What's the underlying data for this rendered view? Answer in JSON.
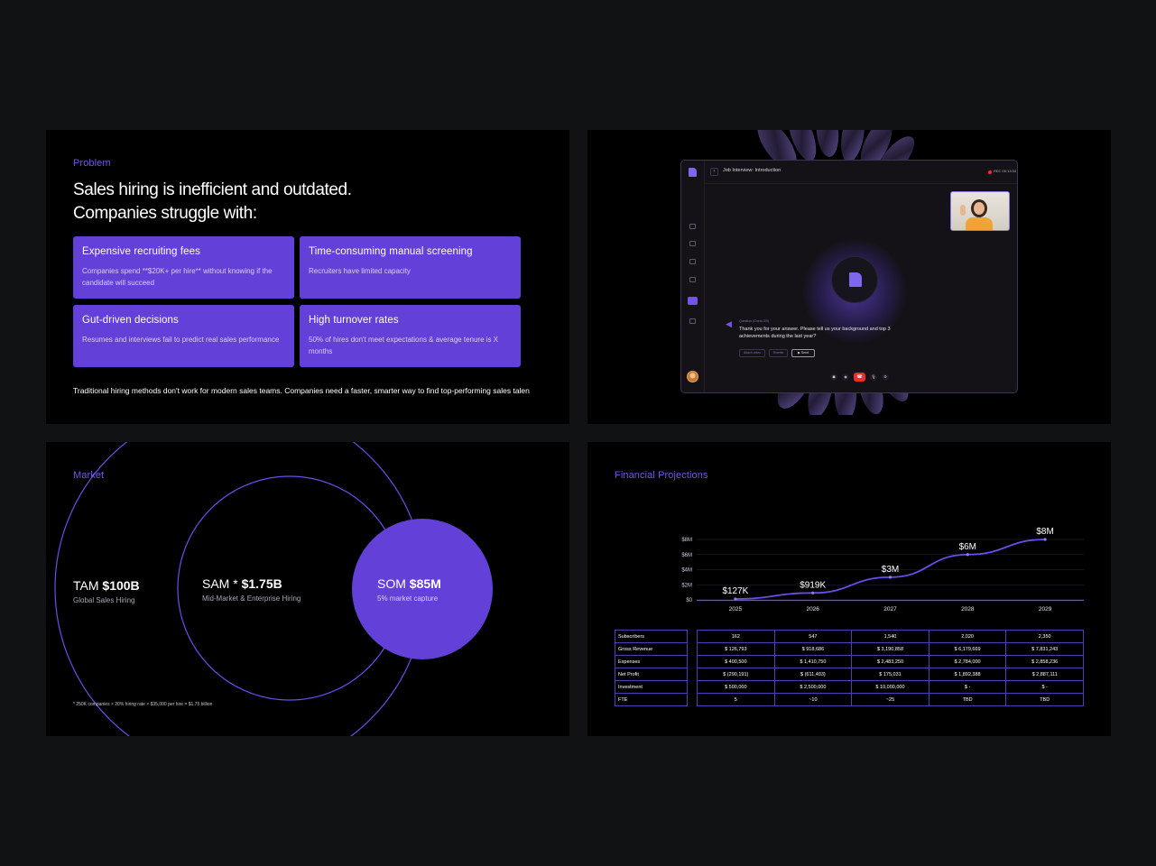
{
  "problem": {
    "eyebrow": "Problem",
    "title_line1": "Sales hiring is inefficient and outdated.",
    "title_line2": "Companies struggle with:",
    "cards": [
      {
        "title": "Expensive recruiting fees",
        "desc": "Companies spend **$20K+ per hire** without knowing if the candidate will succeed"
      },
      {
        "title": "Time-consuming manual screening",
        "desc": "Recruiters have limited capacity"
      },
      {
        "title": "Gut-driven decisions",
        "desc": "Resumes and interviews fail to predict real sales performance"
      },
      {
        "title": "High turnover rates",
        "desc": "50% of hires don't meet expectations & average tenure is X months"
      }
    ],
    "footer": "Traditional hiring methods don't work for modern sales teams. Companies need a faster, smarter way to find top-performing sales talen"
  },
  "interview": {
    "window_title": "Job Interview: Introduction",
    "rec_label": "REC 00:13:34",
    "speaker": "Question (Check 3/5)",
    "question": "Thank you for your answer. Please tell us your background and top 3 achievements during the last year?",
    "actions": [
      "Attach video",
      "Rewrite",
      "Send"
    ],
    "back_glyph": "‹",
    "send_glyph": "▶",
    "call_glyphs": [
      "◼",
      "◉",
      "☎",
      "🎙",
      "⚙"
    ],
    "wave_glyph": "◀"
  },
  "market": {
    "eyebrow": "Market",
    "tam_prefix": "TAM",
    "tam_value": "$100B",
    "tam_sub": "Global Sales Hiring",
    "sam_prefix": "SAM *",
    "sam_value": "$1.75B",
    "sam_sub": "Mid-Market & Enterprise Hiring",
    "som_prefix": "SOM",
    "som_value": "$85M",
    "som_sub": "5% market capture",
    "footnote": "*  250K companies × 20% hiring rate × $35,000 per hire = $1.75 billion",
    "colors": {
      "accent": "#6341d8",
      "ring": "#6a4dec"
    }
  },
  "financial": {
    "eyebrow": "Financial Projections",
    "row_labels": [
      "Subscribers",
      "Gross Revenue",
      "Expenses",
      "Net Profit",
      "Investment",
      "FTE"
    ],
    "rows": [
      [
        "162",
        "547",
        "1,540",
        "2,020",
        "2,350"
      ],
      [
        "$ 126,793",
        "$ 918,686",
        "$ 3,190,858",
        "$ 6,179,669",
        "$ 7,831,243"
      ],
      [
        "$ 400,500",
        "$ 1,410,750",
        "$ 2,483,250",
        "$ 2,784,000",
        "$ 2,858,236"
      ],
      [
        "$ (290,191)",
        "$ (611,493)",
        "$ 175,031",
        "$ 1,892,388",
        "$ 2,887,111"
      ],
      [
        "$ 500,000",
        "$ 2,500,000",
        "$ 10,000,000",
        "$ -",
        "$ -"
      ],
      [
        "5",
        "~10",
        "~25",
        "TBD",
        "TBD"
      ]
    ]
  },
  "chart_data": {
    "type": "line",
    "x": [
      "2025",
      "2026",
      "2027",
      "2028",
      "2029"
    ],
    "series": [
      {
        "values": [
          0.127,
          0.919,
          3.0,
          6.0,
          8.0
        ]
      }
    ],
    "point_labels": [
      "$127K",
      "$919K",
      "$3M",
      "$6M",
      "$8M"
    ],
    "y_ticks": [
      "$0",
      "$2M",
      "$4M",
      "$6M",
      "$8M"
    ],
    "ylim": [
      0,
      8
    ],
    "grid": true,
    "color": "#6a4dec"
  }
}
